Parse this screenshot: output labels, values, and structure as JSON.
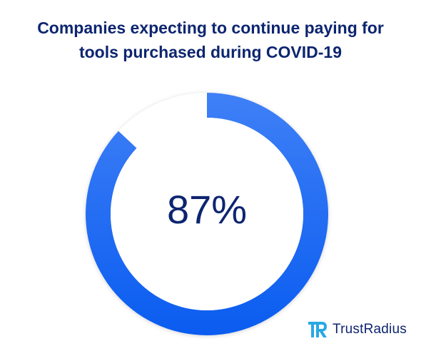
{
  "chart_data": {
    "type": "pie",
    "title_lines": [
      "Companies expecting to continue paying for",
      "tools purchased during COVID-19"
    ],
    "center_label": "87%",
    "slices": [
      {
        "label": "",
        "value": 87,
        "color": "#1666f2"
      },
      {
        "label": "",
        "value": 13,
        "color": "#ffffff"
      }
    ],
    "gradient": [
      "#3f80f6",
      "#0a5cf0"
    ]
  },
  "brand": {
    "name": "TrustRadius",
    "logo_icon": "trustradius-logo-icon",
    "logo_color": "#2aa8e5"
  }
}
